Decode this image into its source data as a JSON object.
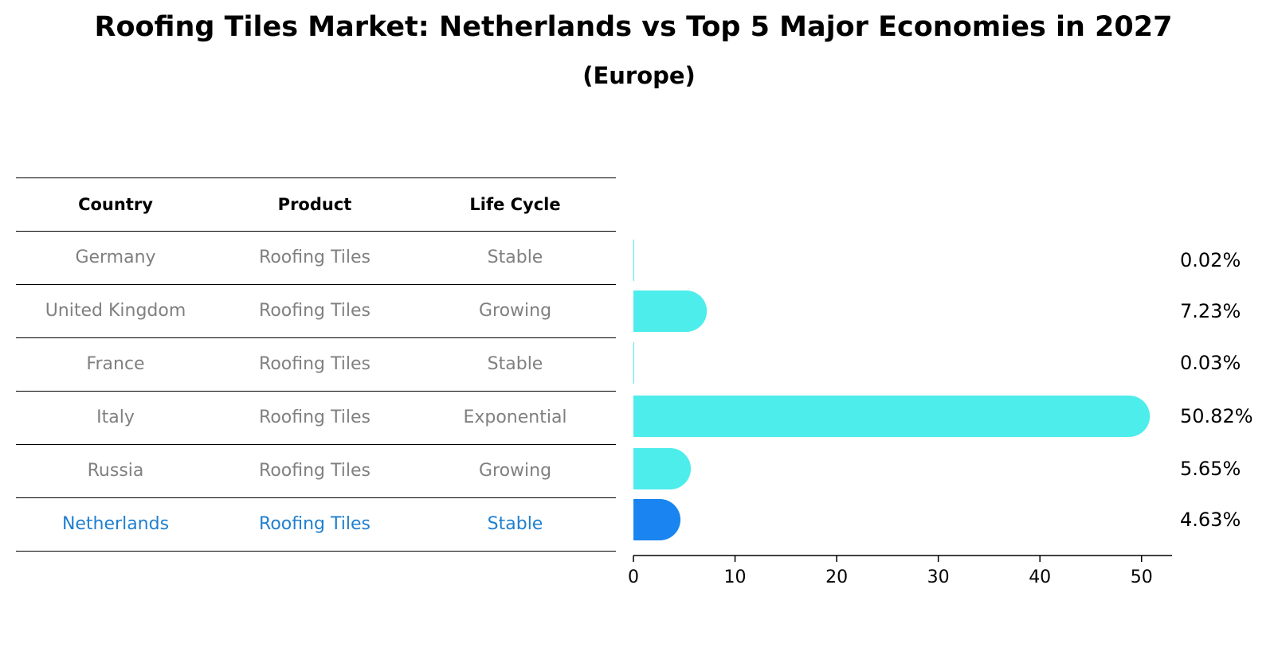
{
  "title": "Roofing Tiles Market: Netherlands vs Top 5 Major Economies in 2027",
  "subtitle": "(Europe)",
  "table": {
    "headers": [
      "Country",
      "Product",
      "Life Cycle"
    ],
    "rows": [
      [
        "Germany",
        "Roofing Tiles",
        "Stable"
      ],
      [
        "United Kingdom",
        "Roofing Tiles",
        "Growing"
      ],
      [
        "France",
        "Roofing Tiles",
        "Stable"
      ],
      [
        "Italy",
        "Roofing Tiles",
        "Exponential"
      ],
      [
        "Russia",
        "Roofing Tiles",
        "Growing"
      ],
      [
        "Netherlands",
        "Roofing Tiles",
        "Stable"
      ]
    ],
    "highlight_row": 5
  },
  "colors": {
    "bar": "#4dedec",
    "highlight_bar": "#1a85f0",
    "highlight_text": "#1f7fcf",
    "muted_text": "#808080"
  },
  "chart_data": {
    "type": "bar",
    "orientation": "horizontal",
    "categories": [
      "Germany",
      "United Kingdom",
      "France",
      "Italy",
      "Russia",
      "Netherlands"
    ],
    "values": [
      0.02,
      7.23,
      0.03,
      50.82,
      5.65,
      4.63
    ],
    "value_labels": [
      "0.02%",
      "7.23%",
      "0.03%",
      "50.82%",
      "5.65%",
      "4.63%"
    ],
    "highlight_category": "Netherlands",
    "xlim": [
      0,
      53
    ],
    "xticks": [
      0,
      10,
      20,
      30,
      40,
      50
    ],
    "xtick_labels": [
      "0",
      "10",
      "20",
      "30",
      "40",
      "50"
    ],
    "xlabel": "",
    "ylabel": "",
    "grid": false
  }
}
